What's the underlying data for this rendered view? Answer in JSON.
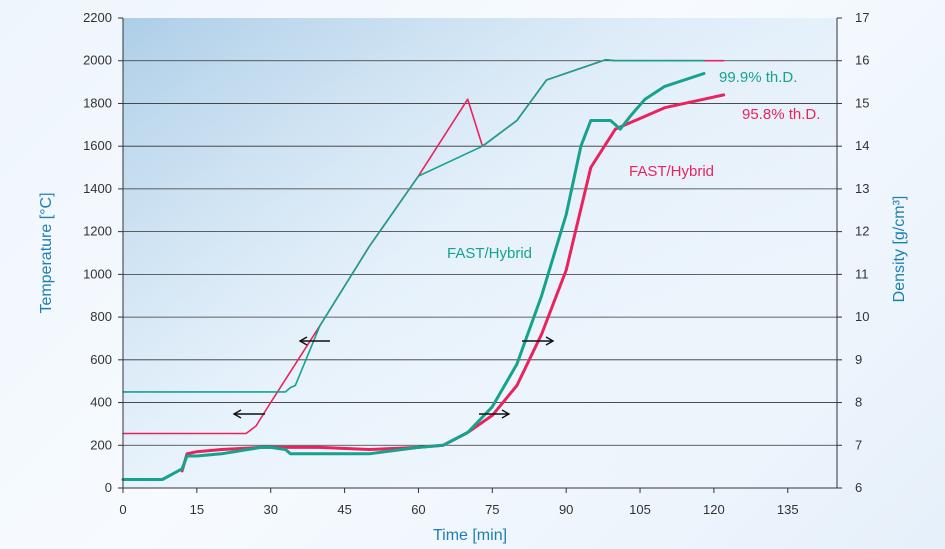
{
  "chart_data": {
    "type": "line",
    "xlabel": "Time [min]",
    "ylabel": "Temperature [°C]",
    "y2label": "Density [g/cm³]",
    "xlim": [
      0,
      145
    ],
    "ylim": [
      0,
      2200
    ],
    "y2lim": [
      6,
      17
    ],
    "xticks": [
      "0",
      "15",
      "30",
      "45",
      "60",
      "75",
      "90",
      "105",
      "120",
      "135"
    ],
    "yticks": [
      "0",
      "200",
      "400",
      "600",
      "800",
      "1000",
      "1200",
      "1400",
      "1600",
      "1800",
      "2000",
      "2200"
    ],
    "y2ticks": [
      "6",
      "7",
      "8",
      "9",
      "10",
      "11",
      "12",
      "13",
      "14",
      "15",
      "16",
      "17"
    ],
    "grid": "horizontal",
    "colors": {
      "teal": "#17a28e",
      "red": "#e8245e",
      "axis_title": "#1f7fb0"
    },
    "series": [
      {
        "name": "",
        "color": "#e8245e",
        "axis": "left",
        "quantity": "Temperature",
        "x": [
          0,
          25,
          27,
          30,
          40,
          50,
          60,
          70,
          73,
          80,
          86,
          98,
          100,
          122
        ],
        "y": [
          255,
          255,
          290,
          400,
          760,
          1130,
          1460,
          1820,
          1600,
          1720,
          1910,
          2005,
          2000,
          2000
        ]
      },
      {
        "name": "",
        "color": "#17a28e",
        "axis": "left",
        "quantity": "Temperature",
        "x": [
          0,
          33,
          34,
          35,
          40,
          50,
          60,
          73,
          80,
          86,
          98,
          100,
          118
        ],
        "y": [
          450,
          450,
          470,
          480,
          760,
          1130,
          1460,
          1600,
          1720,
          1910,
          2005,
          2000,
          2000
        ]
      },
      {
        "name": "FAST/Hybrid",
        "color": "#e8245e",
        "axis": "right",
        "quantity": "Density",
        "x": [
          12,
          13,
          15,
          20,
          28,
          32,
          40,
          50,
          60,
          65,
          70,
          75,
          80,
          85,
          90,
          95,
          100,
          110,
          118,
          122
        ],
        "y": [
          6.4,
          6.8,
          6.85,
          6.9,
          6.95,
          6.95,
          6.95,
          6.9,
          6.95,
          7.0,
          7.3,
          7.7,
          8.4,
          9.6,
          11.1,
          13.5,
          14.4,
          14.9,
          15.1,
          15.2
        ]
      },
      {
        "name": "FAST/Hybrid",
        "color": "#17a28e",
        "axis": "right",
        "quantity": "Density",
        "x": [
          0,
          8,
          12,
          13,
          15,
          20,
          28,
          30,
          33,
          34,
          40,
          50,
          60,
          65,
          70,
          75,
          80,
          85,
          90,
          93,
          95,
          99,
          101,
          103,
          106,
          110,
          118
        ],
        "y": [
          6.2,
          6.2,
          6.45,
          6.75,
          6.75,
          6.8,
          6.95,
          6.95,
          6.9,
          6.8,
          6.8,
          6.8,
          6.95,
          7.0,
          7.3,
          7.9,
          8.9,
          10.5,
          12.4,
          14.0,
          14.6,
          14.6,
          14.4,
          14.7,
          15.1,
          15.4,
          15.7
        ]
      }
    ],
    "annotations": [
      {
        "text": "FAST/Hybrid",
        "color": "#17a28e"
      },
      {
        "text": "FAST/Hybrid",
        "color": "#e8245e"
      },
      {
        "text": "99.9% th.D.",
        "color": "#17a28e"
      },
      {
        "text": "95.8% th.D.",
        "color": "#e8245e"
      }
    ]
  }
}
